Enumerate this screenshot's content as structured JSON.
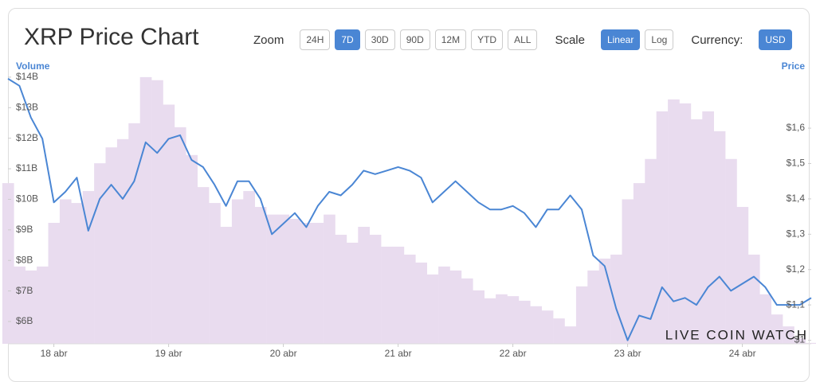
{
  "controls": {
    "title": "XRP Price Chart",
    "zoom": {
      "label": "Zoom",
      "options": [
        "24H",
        "7D",
        "30D",
        "90D",
        "12M",
        "YTD",
        "ALL"
      ],
      "active": "7D"
    },
    "scale": {
      "label": "Scale",
      "options": [
        "Linear",
        "Log"
      ],
      "active": "Linear"
    },
    "currency": {
      "label": "Currency:",
      "options": [
        "USD"
      ],
      "active": "USD"
    }
  },
  "chart_data": {
    "type": "line",
    "y_label": "Volume",
    "y2_label": "Price",
    "credit": "LIVE COIN WATCH",
    "x": [
      17.6,
      17.7,
      17.8,
      17.9,
      18.0,
      18.1,
      18.2,
      18.3,
      18.4,
      18.5,
      18.6,
      18.7,
      18.8,
      18.9,
      19.0,
      19.1,
      19.2,
      19.3,
      19.4,
      19.5,
      19.6,
      19.7,
      19.8,
      19.9,
      20.0,
      20.1,
      20.2,
      20.3,
      20.4,
      20.5,
      20.6,
      20.7,
      20.8,
      20.9,
      21.0,
      21.1,
      21.2,
      21.3,
      21.4,
      21.5,
      21.6,
      21.7,
      21.8,
      21.9,
      22.0,
      22.1,
      22.2,
      22.3,
      22.4,
      22.5,
      22.6,
      22.7,
      22.8,
      22.9,
      23.0,
      23.1,
      23.2,
      23.3,
      23.4,
      23.5,
      23.6,
      23.7,
      23.8,
      23.9,
      24.0,
      24.1,
      24.2,
      24.3,
      24.4,
      24.5,
      24.6
    ],
    "xlim": [
      17.6,
      24.6
    ],
    "xticks": [
      {
        "value": 18,
        "label": "18 abr"
      },
      {
        "value": 19,
        "label": "19 abr"
      },
      {
        "value": 20,
        "label": "20 abr"
      },
      {
        "value": 21,
        "label": "21 abr"
      },
      {
        "value": 22,
        "label": "22 abr"
      },
      {
        "value": 23,
        "label": "23 abr"
      },
      {
        "value": 24,
        "label": "24 abr"
      }
    ],
    "ylim": [
      5.27,
      14.18
    ],
    "yticks": [
      {
        "value": 6,
        "label": "$6B"
      },
      {
        "value": 7,
        "label": "$7B"
      },
      {
        "value": 8,
        "label": "$8B"
      },
      {
        "value": 9,
        "label": "$9B"
      },
      {
        "value": 10,
        "label": "$10B"
      },
      {
        "value": 11,
        "label": "$11B"
      },
      {
        "value": 12,
        "label": "$12B"
      },
      {
        "value": 13,
        "label": "$13B"
      },
      {
        "value": 14,
        "label": "$14B"
      }
    ],
    "y2lim": [
      0.99,
      1.76
    ],
    "y2ticks": [
      {
        "value": 1,
        "label": "$1"
      },
      {
        "value": 1.1,
        "label": "$1,1"
      },
      {
        "value": 1.2,
        "label": "$1,2"
      },
      {
        "value": 1.3,
        "label": "$1,3"
      },
      {
        "value": 1.4,
        "label": "$1,4"
      },
      {
        "value": 1.5,
        "label": "$1,5"
      },
      {
        "value": 1.6,
        "label": "$1,6"
      }
    ],
    "series": [
      {
        "name": "Volume",
        "type": "bar",
        "color": "#e9dcef",
        "values": [
          10.53,
          7.8,
          7.67,
          7.8,
          9.23,
          10.0,
          9.88,
          10.27,
          11.18,
          11.7,
          11.97,
          12.49,
          14.0,
          13.9,
          13.1,
          12.36,
          11.45,
          10.4,
          9.88,
          9.1,
          10.0,
          10.27,
          9.75,
          9.5,
          9.5,
          9.36,
          9.23,
          9.23,
          9.5,
          8.84,
          8.58,
          9.1,
          8.84,
          8.45,
          8.45,
          8.19,
          7.93,
          7.54,
          7.8,
          7.67,
          7.41,
          7.02,
          6.76,
          6.89,
          6.83,
          6.68,
          6.5,
          6.36,
          6.1,
          5.84,
          7.15,
          7.67,
          8.06,
          8.19,
          10.0,
          10.53,
          11.32,
          12.88,
          13.27,
          13.14,
          12.62,
          12.88,
          12.23,
          11.32,
          9.75,
          8.19,
          6.89,
          6.23,
          5.84,
          5.45,
          5.3
        ]
      },
      {
        "name": "Price",
        "type": "line",
        "axis": "y2",
        "color": "#4a86d4",
        "values": [
          1.74,
          1.72,
          1.63,
          1.57,
          1.39,
          1.42,
          1.46,
          1.31,
          1.4,
          1.44,
          1.4,
          1.45,
          1.56,
          1.53,
          1.57,
          1.58,
          1.51,
          1.49,
          1.44,
          1.38,
          1.45,
          1.45,
          1.4,
          1.3,
          1.33,
          1.36,
          1.32,
          1.38,
          1.42,
          1.41,
          1.44,
          1.48,
          1.47,
          1.48,
          1.49,
          1.48,
          1.46,
          1.39,
          1.42,
          1.45,
          1.42,
          1.39,
          1.37,
          1.37,
          1.38,
          1.36,
          1.32,
          1.37,
          1.37,
          1.41,
          1.37,
          1.24,
          1.21,
          1.09,
          1.0,
          1.07,
          1.06,
          1.15,
          1.11,
          1.12,
          1.1,
          1.15,
          1.18,
          1.14,
          1.16,
          1.18,
          1.15,
          1.1,
          1.1,
          1.1,
          1.12
        ]
      }
    ]
  }
}
